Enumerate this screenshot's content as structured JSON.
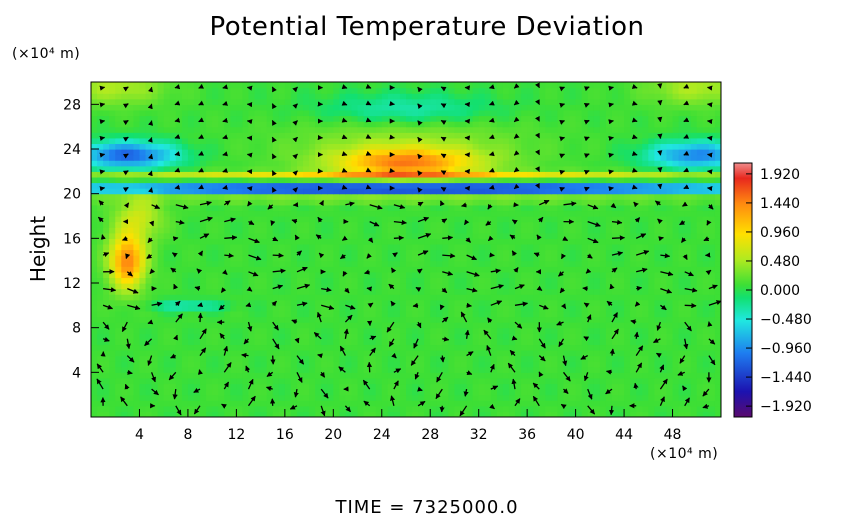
{
  "chart_data": {
    "type": "heatmap",
    "title": "Potential Temperature Deviation",
    "ylabel": "Height",
    "x_unit": "(×10⁴ m)",
    "y_unit": "(×10⁴ m)",
    "xlim": [
      0,
      52
    ],
    "ylim": [
      0,
      30
    ],
    "x_ticks": [
      4,
      8,
      12,
      16,
      20,
      24,
      28,
      32,
      36,
      40,
      44,
      48
    ],
    "y_ticks": [
      4,
      8,
      12,
      16,
      20,
      24,
      28
    ],
    "colorbar": {
      "min": -2.1,
      "max": 2.1,
      "ticks": [
        "1.920",
        "1.440",
        "0.960",
        "0.480",
        "0.000",
        "−0.480",
        "−0.960",
        "−1.440",
        "−1.920"
      ],
      "tick_values": [
        1.92,
        1.44,
        0.96,
        0.48,
        0.0,
        -0.48,
        -0.96,
        -1.44,
        -1.92
      ]
    },
    "features": [
      {
        "x": 26,
        "y": 22.8,
        "sx": 6,
        "sy": 1.3,
        "value": 1.3
      },
      {
        "x": 26,
        "y": 24.5,
        "sx": 9,
        "sy": 2.5,
        "value": 0.4
      },
      {
        "x": 3,
        "y": 23.5,
        "sx": 4,
        "sy": 1.2,
        "value": -1.2
      },
      {
        "x": 50,
        "y": 23.5,
        "sx": 4,
        "sy": 1.2,
        "value": -1.0
      },
      {
        "x": 26,
        "y": 27.5,
        "sx": 7,
        "sy": 1.5,
        "value": -0.4
      },
      {
        "x": 3,
        "y": 14,
        "sx": 1.5,
        "sy": 2.5,
        "value": 1.5
      },
      {
        "x": 4,
        "y": 18,
        "sx": 2,
        "sy": 2,
        "value": 0.6
      },
      {
        "x": 26,
        "y": 20.5,
        "sx": 30,
        "sy": 0.5,
        "value": -1.7
      },
      {
        "x": 26,
        "y": 21.7,
        "sx": 30,
        "sy": 0.35,
        "value": 0.9
      },
      {
        "x": 26,
        "y": 19.6,
        "sx": 30,
        "sy": 0.3,
        "value": 0.6
      },
      {
        "x": 8,
        "y": 10,
        "sx": 3,
        "sy": 0.5,
        "value": -0.4
      },
      {
        "x": 2,
        "y": 29.5,
        "sx": 4,
        "sy": 1.5,
        "value": 0.5
      },
      {
        "x": 50,
        "y": 29.5,
        "sx": 4,
        "sy": 1.5,
        "value": 0.5
      }
    ],
    "time_label": "TIME = 7325000.0"
  }
}
